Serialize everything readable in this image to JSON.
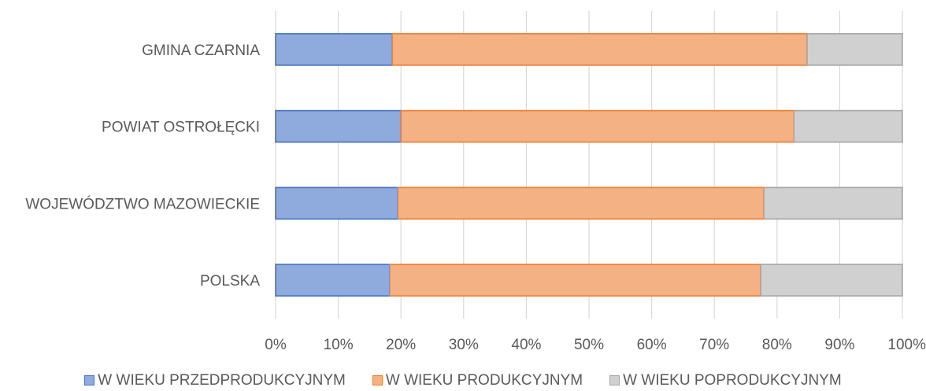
{
  "chart_data": {
    "type": "bar",
    "orientation": "horizontal",
    "stacked": true,
    "normalized": true,
    "categories": [
      "GMINA CZARNIA",
      "POWIAT OSTROŁĘCKI",
      "WOJEWÓDZTWO MAZOWIECKIE",
      "POLSKA"
    ],
    "series": [
      {
        "name": "W WIEKU PRZEDPRODUKCYJNYM",
        "values": [
          18.6,
          20.0,
          19.5,
          18.2
        ],
        "color": "#8FAADC",
        "stroke": "#4472C4"
      },
      {
        "name": "W WIEKU PRODUKCYJNYM",
        "values": [
          66.2,
          62.7,
          58.4,
          59.2
        ],
        "color": "#F4B183",
        "stroke": "#ED7D31"
      },
      {
        "name": "W WIEKU POPRODUKCYJNYM",
        "values": [
          15.2,
          17.3,
          22.1,
          22.6
        ],
        "color": "#D0D0D0",
        "stroke": "#A5A5A5"
      }
    ],
    "x_ticks": [
      "0%",
      "10%",
      "20%",
      "30%",
      "40%",
      "50%",
      "60%",
      "70%",
      "80%",
      "90%",
      "100%"
    ],
    "xlim": [
      0,
      100
    ],
    "grid": "vertical",
    "legend_position": "bottom"
  }
}
